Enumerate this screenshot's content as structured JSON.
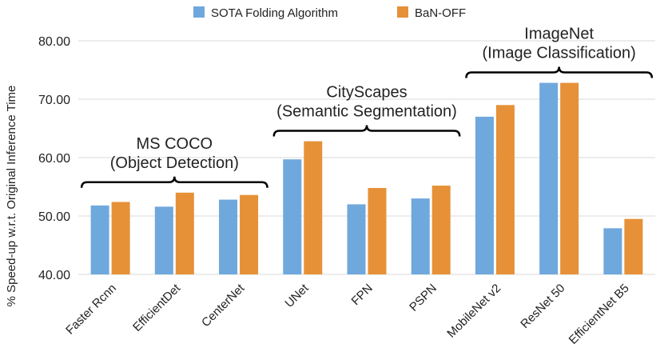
{
  "chart_data": {
    "type": "bar",
    "ylabel": "% Speed-up w.r.t. Original Inference Time",
    "ylim": [
      40,
      80
    ],
    "yticks": [
      "40.00",
      "50.00",
      "60.00",
      "70.00",
      "80.00"
    ],
    "ytick_values": [
      40,
      50,
      60,
      70,
      80
    ],
    "grid": true,
    "legend_position": "top-center",
    "categories": [
      "Faster Rcnn",
      "EfficientDet",
      "CenterNet",
      "UNet",
      "FPN",
      "PSPN",
      "MobileNet v2",
      "ResNet 50",
      "EfficientNet B5"
    ],
    "series": [
      {
        "name": "SOTA Folding Algorithm",
        "color": "#6fa8dc",
        "values": [
          51.8,
          51.6,
          52.8,
          59.7,
          52.0,
          53.0,
          67.0,
          72.8,
          47.9
        ]
      },
      {
        "name": "BaN-OFF",
        "color": "#e69138",
        "values": [
          52.4,
          54.0,
          53.6,
          62.8,
          54.8,
          55.2,
          69.0,
          72.8,
          49.5
        ]
      }
    ],
    "groups": [
      {
        "line1": "MS COCO",
        "line2": "(Object Detection)",
        "first": 0,
        "last": 2
      },
      {
        "line1": "CityScapes",
        "line2": "(Semantic Segmentation)",
        "first": 3,
        "last": 5
      },
      {
        "line1": "ImageNet",
        "line2": "(Image Classification)",
        "first": 6,
        "last": 8
      }
    ]
  }
}
